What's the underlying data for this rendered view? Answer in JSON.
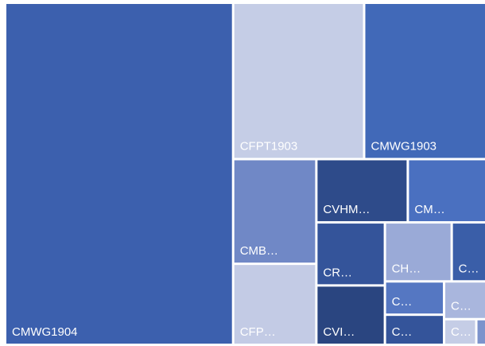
{
  "chart_data": {
    "type": "treemap",
    "categories": [
      "CMWG1904",
      "CFPT1903",
      "CMWG1903",
      "CMB…",
      "CFP…",
      "CVHM…",
      "CM…",
      "CR…",
      "CVI…",
      "CH…",
      "C…",
      "C…",
      "C…",
      "C…",
      "C…",
      null
    ],
    "values": [
      1226,
      322,
      300,
      137,
      106,
      91,
      78,
      68,
      64,
      62,
      32,
      31,
      28,
      25,
      13,
      4
    ],
    "colors": [
      "#3c60ae",
      "#c5cde6",
      "#4169b8",
      "#7088c6",
      "#c3cbe5",
      "#2e4b8a",
      "#4a70c0",
      "#34549a",
      "#2a4580",
      "#9aaad7",
      "#3a5ea8",
      "#5577c2",
      "#34549a",
      "#a9b6dd",
      "#c5cde6",
      "#7c93cc"
    ]
  }
}
